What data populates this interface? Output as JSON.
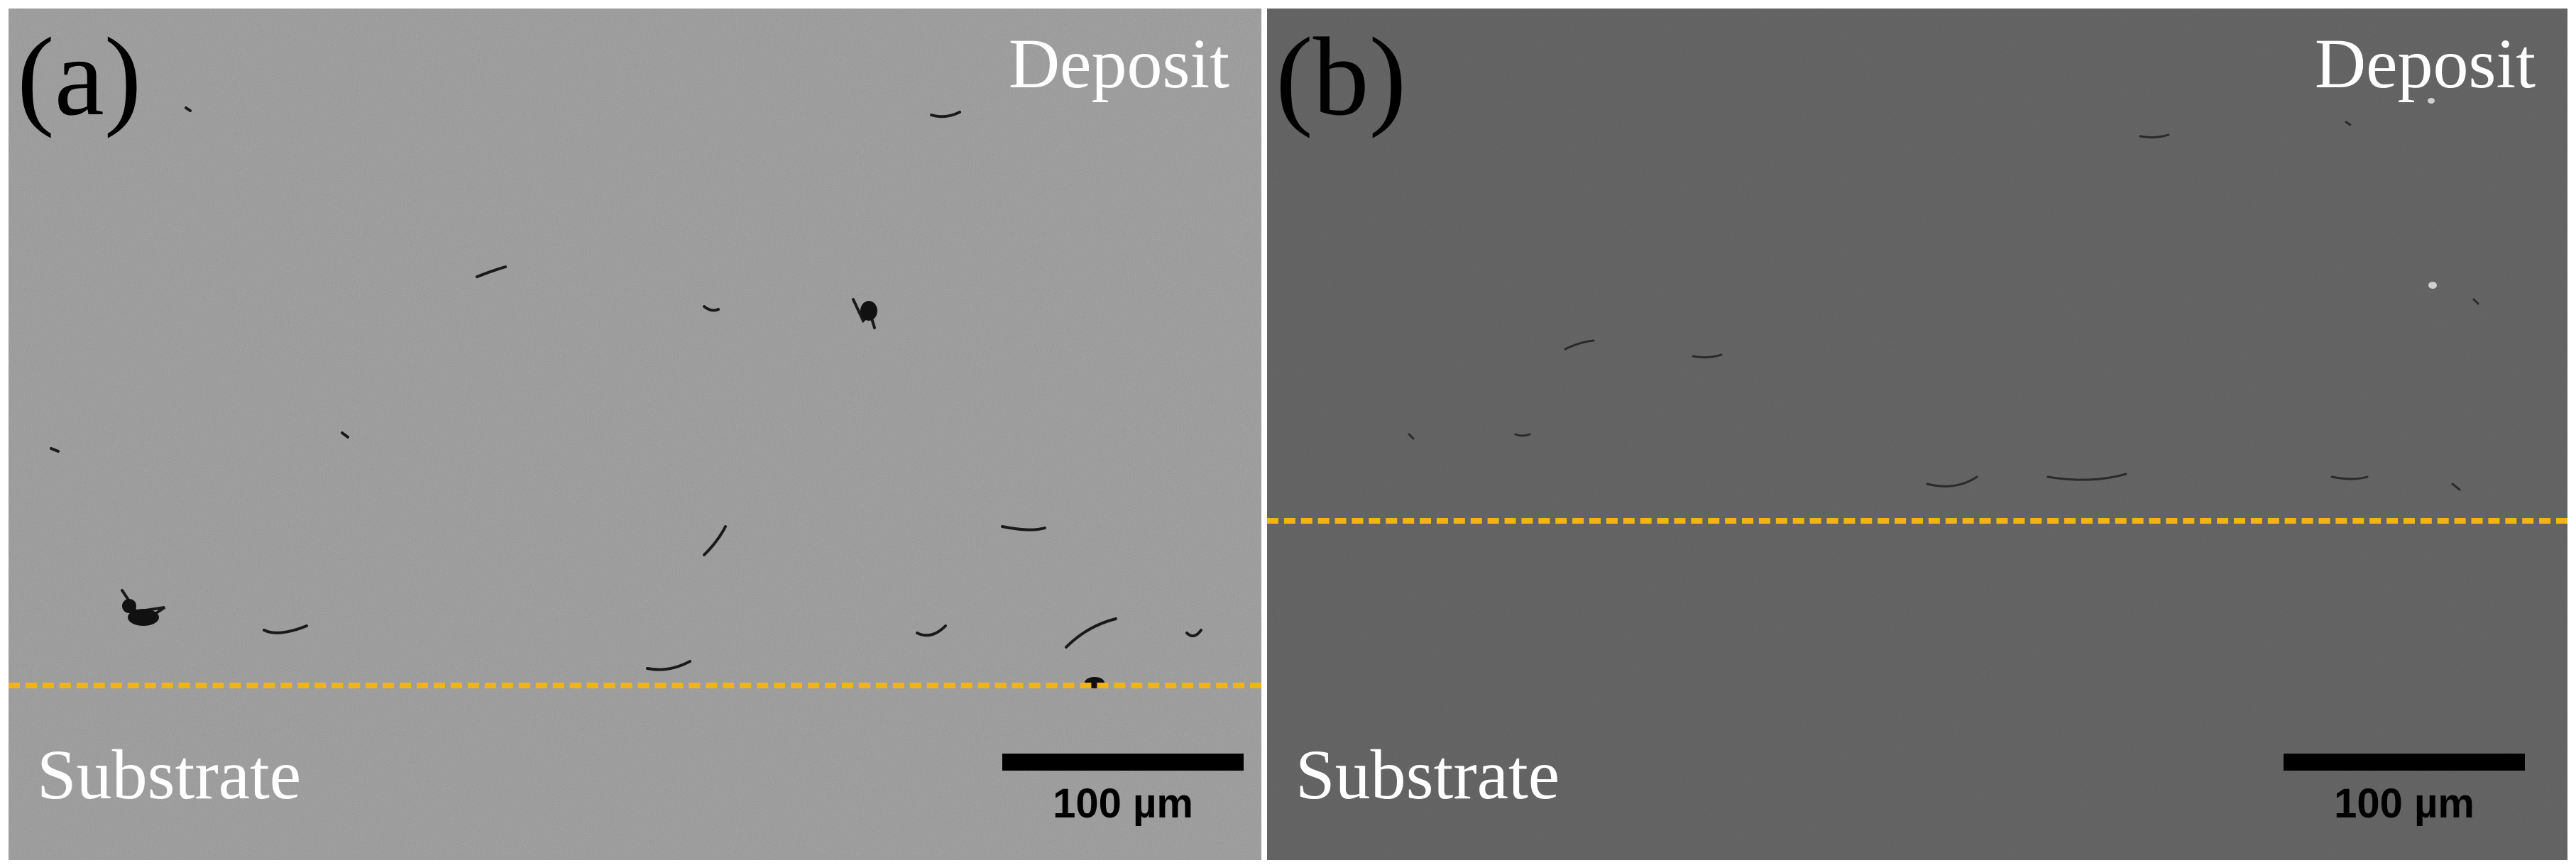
{
  "panels": [
    {
      "label": "(a)",
      "top_region": "Deposit",
      "bottom_region": "Substrate",
      "scale_bar": "100 µm",
      "background_color": "#979797",
      "boundary_color": "#f1b512"
    },
    {
      "label": "(b)",
      "top_region": "Deposit",
      "bottom_region": "Substrate",
      "scale_bar": "100 µm",
      "background_color": "#5e5e5e",
      "boundary_color": "#f1b512"
    }
  ]
}
